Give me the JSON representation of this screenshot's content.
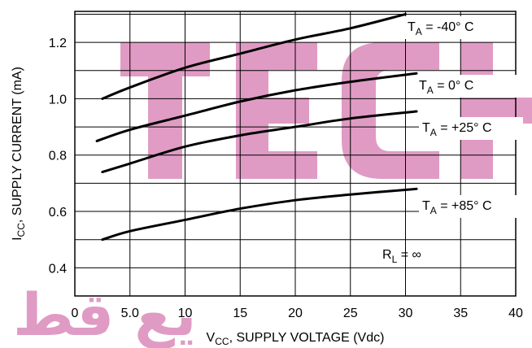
{
  "watermark": {
    "latin_text": "TECH",
    "arabic_text": "يع قط",
    "color": "#c84a95"
  },
  "chart_data": {
    "type": "line",
    "title": "",
    "xlabel": "V",
    "xlabel_sub": "CC",
    "xlabel_rest": ", SUPPLY VOLTAGE (Vdc)",
    "ylabel": "I",
    "ylabel_sub": "CC",
    "ylabel_rest": ", SUPPLY CURRENT (mA)",
    "xlim": [
      0,
      40
    ],
    "ylim": [
      0.3,
      1.31
    ],
    "x_ticks": [
      0,
      5,
      10,
      15,
      20,
      25,
      30,
      35,
      40
    ],
    "x_tick_labels": [
      "0",
      "5.0",
      "10",
      "15",
      "20",
      "25",
      "30",
      "35",
      "40"
    ],
    "x_grid": [
      0,
      5,
      10,
      15,
      20,
      25,
      30,
      35,
      40
    ],
    "y_ticks": [
      0.4,
      0.6,
      0.8,
      1.0,
      1.2
    ],
    "y_tick_labels": [
      "0.4",
      "0.6",
      "0.8",
      "1.0",
      "1.2"
    ],
    "y_grid": [
      0.3,
      0.4,
      0.5,
      0.6,
      0.7,
      0.8,
      0.9,
      1.0,
      1.1,
      1.2,
      1.3
    ],
    "grid": true,
    "series": [
      {
        "name": "-40° C",
        "points": [
          [
            2.5,
            1.0
          ],
          [
            5,
            1.04
          ],
          [
            10,
            1.11
          ],
          [
            15,
            1.16
          ],
          [
            20,
            1.21
          ],
          [
            25,
            1.25
          ],
          [
            30,
            1.3
          ]
        ]
      },
      {
        "name": "0° C",
        "points": [
          [
            2,
            0.85
          ],
          [
            5,
            0.89
          ],
          [
            10,
            0.94
          ],
          [
            15,
            0.99
          ],
          [
            20,
            1.03
          ],
          [
            25,
            1.06
          ],
          [
            31,
            1.09
          ]
        ]
      },
      {
        "name": "+25° C",
        "points": [
          [
            2.5,
            0.74
          ],
          [
            5,
            0.77
          ],
          [
            10,
            0.83
          ],
          [
            15,
            0.87
          ],
          [
            20,
            0.9
          ],
          [
            25,
            0.93
          ],
          [
            31,
            0.955
          ]
        ]
      },
      {
        "name": "+85° C",
        "points": [
          [
            2.5,
            0.5
          ],
          [
            5,
            0.53
          ],
          [
            10,
            0.57
          ],
          [
            15,
            0.61
          ],
          [
            20,
            0.64
          ],
          [
            25,
            0.66
          ],
          [
            31,
            0.68
          ]
        ]
      }
    ],
    "annotations": {
      "ta_prefix": "T",
      "ta_sub": "A",
      "ta_eq": " = ",
      "rl_prefix": "R",
      "rl_sub": "L",
      "rl_value": " =  ∞"
    }
  }
}
